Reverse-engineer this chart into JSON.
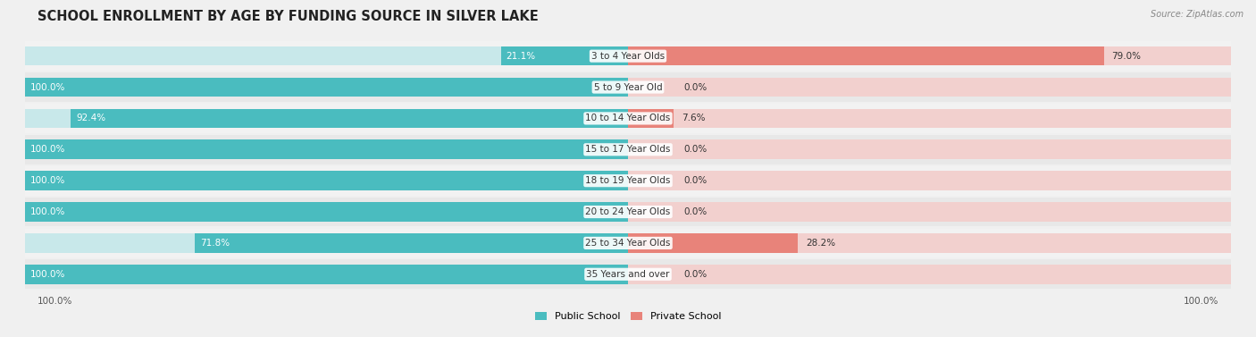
{
  "title": "SCHOOL ENROLLMENT BY AGE BY FUNDING SOURCE IN SILVER LAKE",
  "source": "Source: ZipAtlas.com",
  "categories": [
    "3 to 4 Year Olds",
    "5 to 9 Year Old",
    "10 to 14 Year Olds",
    "15 to 17 Year Olds",
    "18 to 19 Year Olds",
    "20 to 24 Year Olds",
    "25 to 34 Year Olds",
    "35 Years and over"
  ],
  "public_values": [
    21.1,
    100.0,
    92.4,
    100.0,
    100.0,
    100.0,
    71.8,
    100.0
  ],
  "private_values": [
    79.0,
    0.0,
    7.6,
    0.0,
    0.0,
    0.0,
    28.2,
    0.0
  ],
  "public_color": "#4abcbf",
  "private_color": "#e8837a",
  "public_bg_color": "#c8e8ea",
  "private_bg_color": "#f2d0ce",
  "row_bg_light": "#f2f2f2",
  "row_bg_dark": "#e8e8e8",
  "title_fontsize": 10.5,
  "label_fontsize": 7.5,
  "value_fontsize": 7.5,
  "legend_fontsize": 8,
  "source_fontsize": 7
}
